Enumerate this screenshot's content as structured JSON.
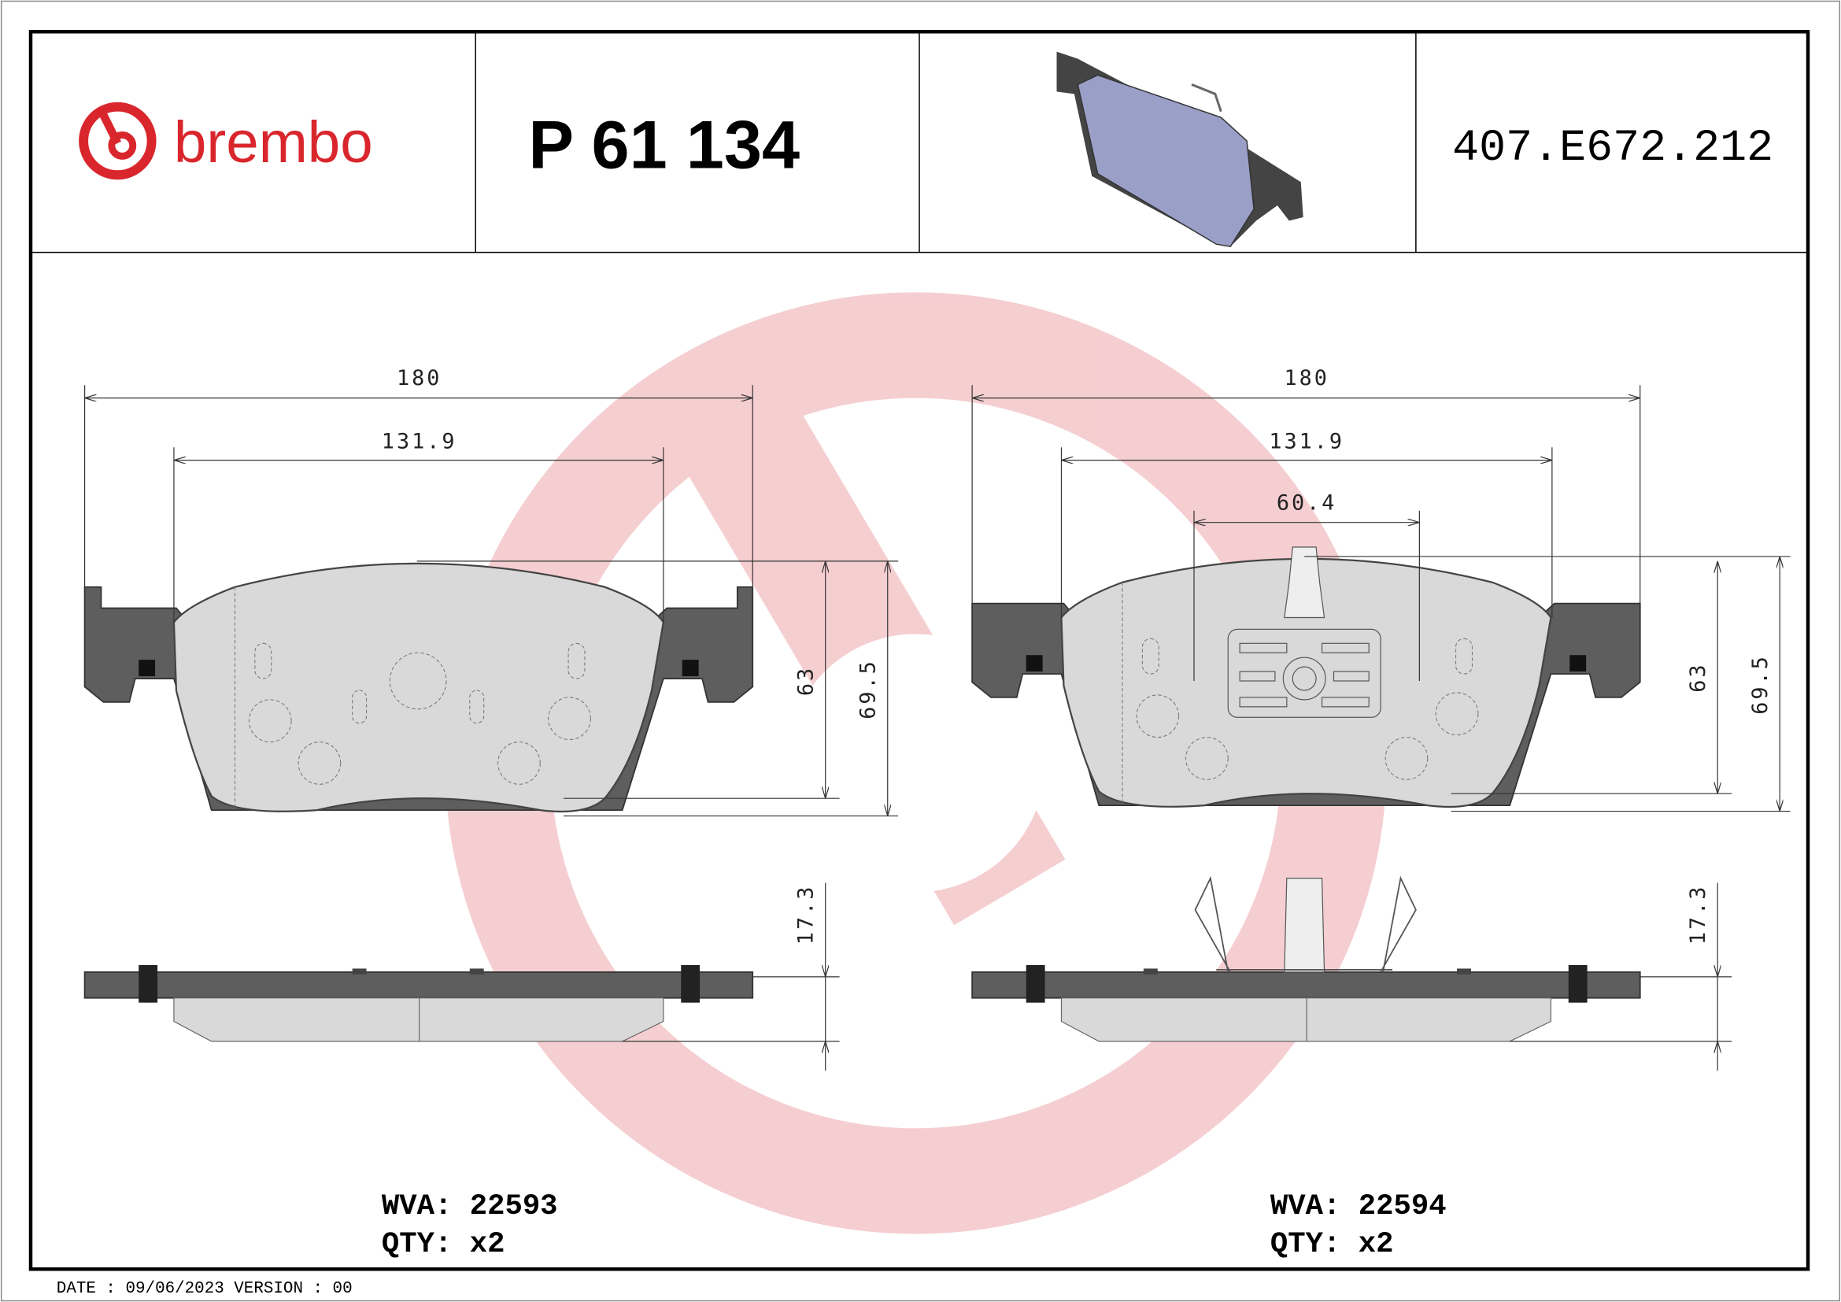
{
  "header": {
    "brand": "brembo",
    "part_number": "P 61 134",
    "reference_code": "407.E672.212"
  },
  "colors": {
    "brand_red": "#d9262c",
    "watermark": "#f4c9cc",
    "backing_plate": "#5e5e5e",
    "friction": "#d9d9d9",
    "preview_pad": "#9a9fc8"
  },
  "left_pad": {
    "dims": {
      "width_total": "180",
      "width_friction": "131.9",
      "height_friction": "63",
      "height_total": "69.5",
      "thickness": "17.3"
    },
    "wva": "WVA: 22593",
    "qty": "QTY: x2"
  },
  "right_pad": {
    "dims": {
      "width_total": "180",
      "width_friction": "131.9",
      "sensor_spacing": "60.4",
      "height_friction": "63",
      "height_total": "69.5",
      "thickness": "17.3"
    },
    "wva": "WVA: 22594",
    "qty": "QTY: x2"
  },
  "footer": {
    "date_version": "DATE : 09/06/2023 VERSION : 00"
  }
}
